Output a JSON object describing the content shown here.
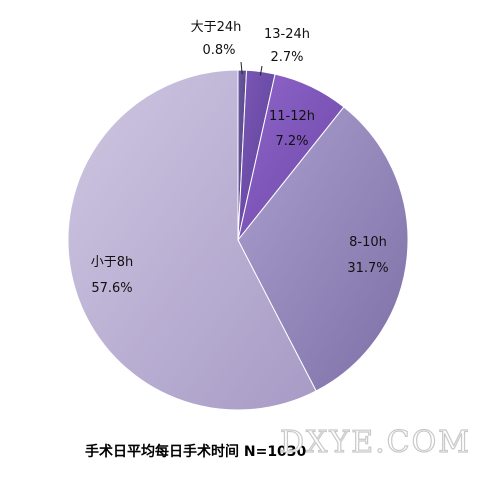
{
  "chart_data": {
    "type": "pie",
    "title": "手术日平均每日手术时间 N=1030",
    "slices": [
      {
        "category": "大于24h",
        "percent_label": "0.8%",
        "value": 0.8,
        "color": "#5b4a8e"
      },
      {
        "category": "13-24h",
        "percent_label": "2.7%",
        "value": 2.7,
        "color": "#6a4aa6"
      },
      {
        "category": "11-12h",
        "percent_label": "7.2%",
        "value": 7.2,
        "color": "#7f58bb"
      },
      {
        "category": "8-10h",
        "percent_label": "31.7%",
        "value": 31.7,
        "color": "#9d8fc0"
      },
      {
        "category": "小于8h",
        "percent_label": "57.6%",
        "value": 57.6,
        "color": "#bdb3d5"
      }
    ]
  },
  "watermark": "DXYE.COM"
}
